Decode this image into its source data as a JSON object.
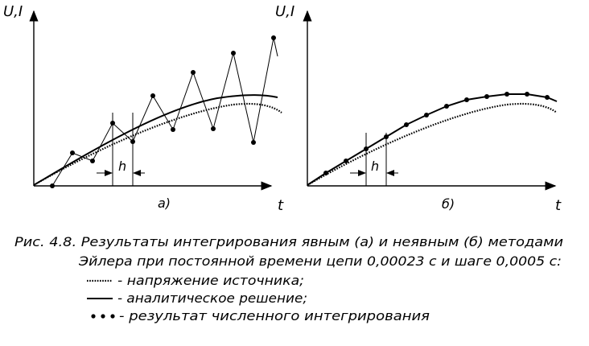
{
  "panels": [
    {
      "y_axis_label": "U,I",
      "x_axis_label": "t",
      "panel_label": "а)",
      "step_label": "h"
    },
    {
      "y_axis_label": "U,I",
      "x_axis_label": "t",
      "panel_label": "б)",
      "step_label": "h"
    }
  ],
  "caption": {
    "line1": "Рис. 4.8. Результаты интегрирования явным (а) и неявным (б) методами",
    "line2": "Эйлера при постоянной времени цепи  0,00023 с и шаге 0,0005 с:"
  },
  "legend": [
    {
      "label": "- напряжение источника;"
    },
    {
      "label": "- аналитическое решение;"
    },
    {
      "label": "- результат численного интегрирования"
    }
  ]
}
